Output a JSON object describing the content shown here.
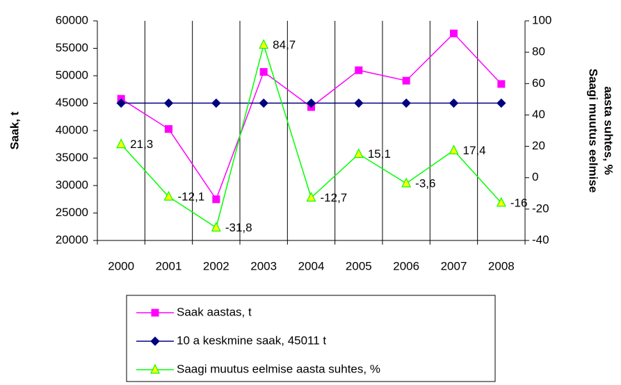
{
  "chart_data": {
    "type": "line",
    "ylabel": "Saak, t",
    "y2label": [
      "Saagi muutus eelmise",
      "aasta suhtes, %"
    ],
    "categories": [
      "2000",
      "2001",
      "2002",
      "2003",
      "2004",
      "2005",
      "2006",
      "2007",
      "2008"
    ],
    "series": [
      {
        "name": "Saak aastas, t",
        "color": "#ff00ff",
        "marker": "square",
        "values": [
          45800,
          40300,
          27500,
          50700,
          44300,
          51000,
          49100,
          57700,
          48500
        ]
      },
      {
        "name": "10 a keskmine saak, 45011 t",
        "color": "#000080",
        "marker": "diamond",
        "values": [
          45011,
          45011,
          45011,
          45011,
          45011,
          45011,
          45011,
          45011,
          45011
        ]
      },
      {
        "name": "Saagi muutus eelmise aasta suhtes, %",
        "color": "#00ff00",
        "marker": "triangle",
        "marker_fill": "#ffff00",
        "axis": "y2",
        "values": [
          21.3,
          -12.1,
          -31.8,
          84.7,
          -12.7,
          15.1,
          -3.6,
          17.4,
          -16
        ],
        "value_labels": [
          "21,3",
          "-12,1",
          "-31,8",
          "84,7",
          "-12,7",
          "15,1",
          "-3,6",
          "17,4",
          "-16"
        ]
      }
    ],
    "ylim": [
      20000,
      60000
    ],
    "yticks": [
      20000,
      25000,
      30000,
      35000,
      40000,
      45000,
      50000,
      55000,
      60000
    ],
    "y2lim": [
      -40,
      100
    ],
    "y2ticks": [
      -40,
      -20,
      0,
      20,
      40,
      60,
      80,
      100
    ],
    "grid": "x",
    "legend": "bottom"
  }
}
